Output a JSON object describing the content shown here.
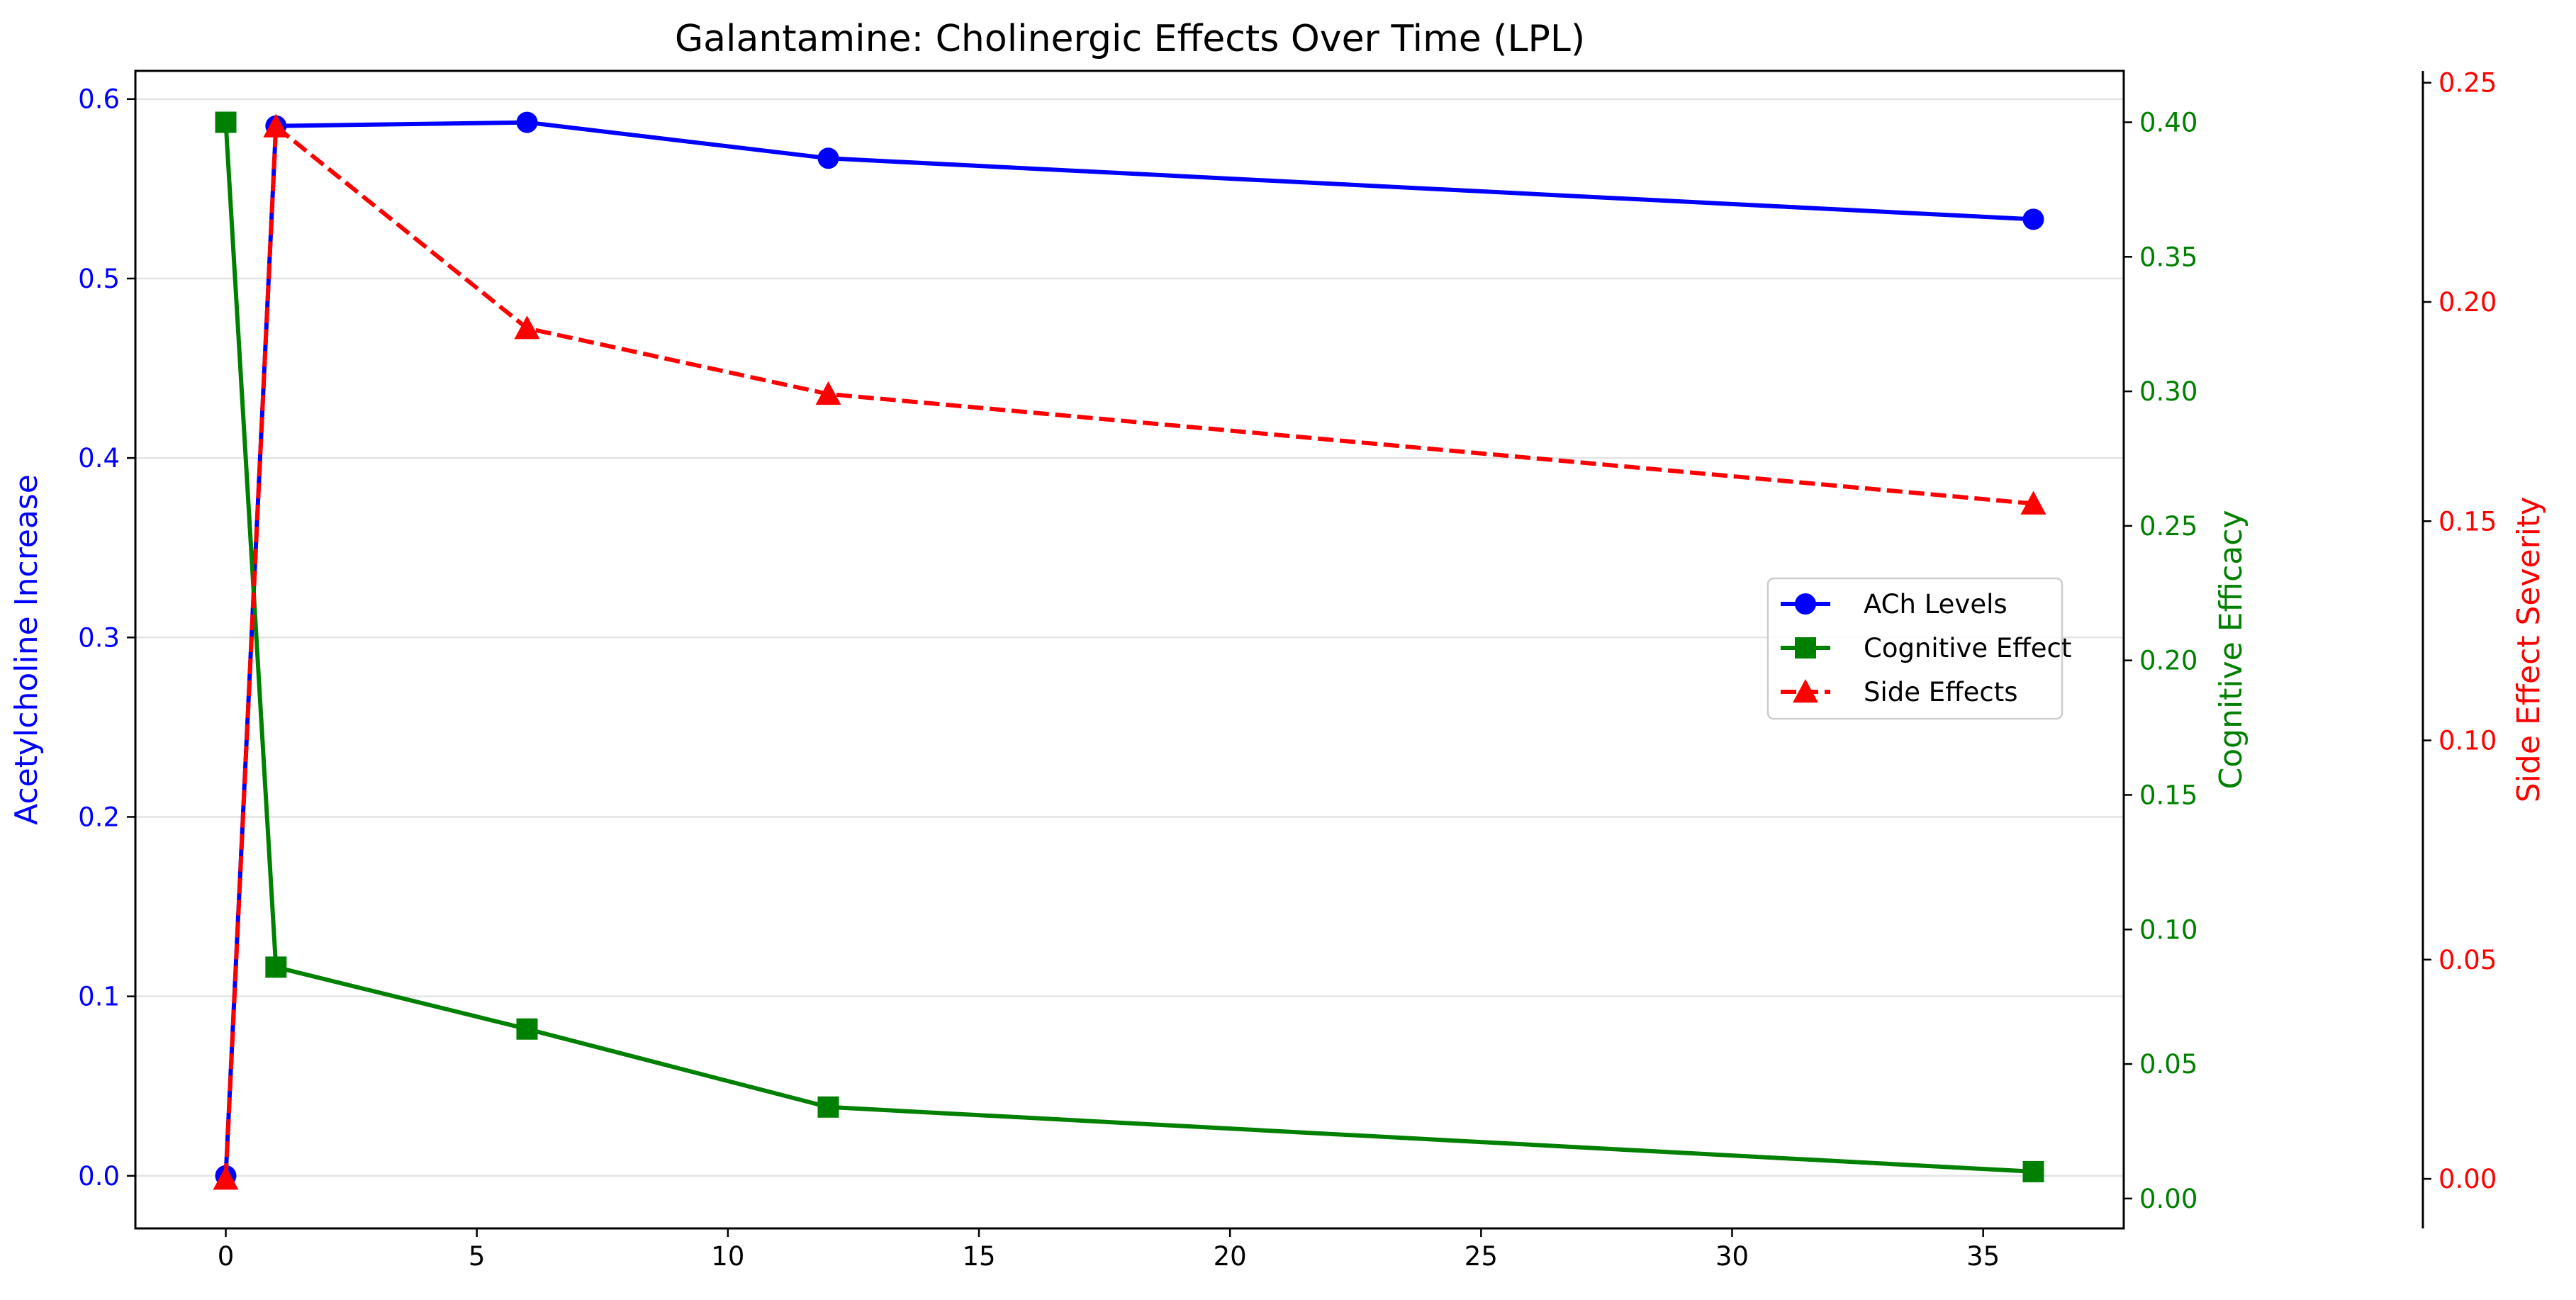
{
  "chart_data": {
    "type": "line",
    "title": "Galantamine: Cholinergic Effects Over Time (LPL)",
    "xlabel": "",
    "x": [
      0,
      1,
      6,
      12,
      36
    ],
    "xlim": [
      -1.8,
      37.8
    ],
    "xticks": [
      0,
      5,
      10,
      15,
      20,
      25,
      30,
      35
    ],
    "grid": "y-major-light",
    "legend_position": "center-right",
    "axes": [
      {
        "id": "ach",
        "label": "Acetylcholine Increase",
        "side": "left",
        "color": "#0000ff",
        "ylim": [
          -0.0293,
          0.6157
        ],
        "ticks": [
          0.0,
          0.1,
          0.2,
          0.3,
          0.4,
          0.5,
          0.6
        ]
      },
      {
        "id": "cog",
        "label": "Cognitive Efficacy",
        "side": "right",
        "color": "#008000",
        "ylim": [
          -0.0111,
          0.4191
        ],
        "ticks": [
          0.0,
          0.05,
          0.1,
          0.15,
          0.2,
          0.25,
          0.3,
          0.35,
          0.4
        ]
      },
      {
        "id": "side",
        "label": "Side Effect Severity",
        "side": "right-outer",
        "color": "#ff0000",
        "ylim": [
          -0.0113,
          0.2527
        ],
        "ticks": [
          0.0,
          0.05,
          0.1,
          0.15,
          0.2,
          0.25
        ]
      }
    ],
    "series": [
      {
        "name": "ACh Levels",
        "axis": "ach",
        "color": "#0000ff",
        "marker": "circle",
        "dash": "solid",
        "values": [
          0.0,
          0.585,
          0.587,
          0.567,
          0.533
        ]
      },
      {
        "name": "Cognitive Effect",
        "axis": "cog",
        "color": "#008000",
        "marker": "square",
        "dash": "solid",
        "values": [
          0.4,
          0.086,
          0.063,
          0.034,
          0.01
        ]
      },
      {
        "name": "Side Effects",
        "axis": "side",
        "color": "#ff0000",
        "marker": "triangle",
        "dash": "dashed",
        "values": [
          0.0,
          0.24,
          0.194,
          0.179,
          0.154
        ]
      }
    ]
  }
}
